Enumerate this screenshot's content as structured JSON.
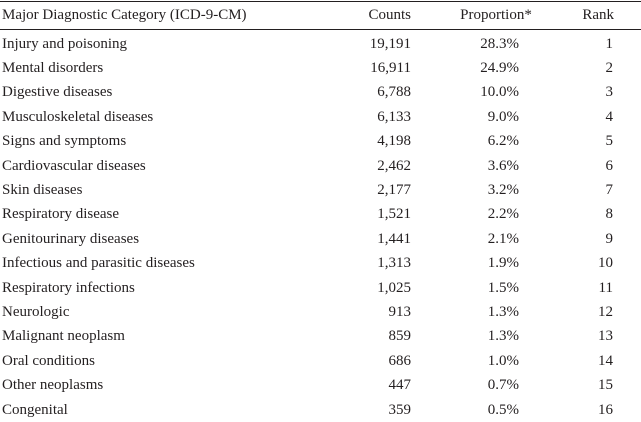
{
  "table": {
    "headers": {
      "category": "Major Diagnostic Category (ICD-9-CM)",
      "counts": "Counts",
      "proportion": "Proportion*",
      "rank": "Rank"
    },
    "rows": [
      {
        "category": "Injury and poisoning",
        "counts": "19,191",
        "proportion": "28.3%",
        "rank": "1"
      },
      {
        "category": "Mental disorders",
        "counts": "16,911",
        "proportion": "24.9%",
        "rank": "2"
      },
      {
        "category": "Digestive diseases",
        "counts": "6,788",
        "proportion": "10.0%",
        "rank": "3"
      },
      {
        "category": "Musculoskeletal diseases",
        "counts": "6,133",
        "proportion": "9.0%",
        "rank": "4"
      },
      {
        "category": "Signs and symptoms",
        "counts": "4,198",
        "proportion": "6.2%",
        "rank": "5"
      },
      {
        "category": "Cardiovascular diseases",
        "counts": "2,462",
        "proportion": "3.6%",
        "rank": "6"
      },
      {
        "category": "Skin diseases",
        "counts": "2,177",
        "proportion": "3.2%",
        "rank": "7"
      },
      {
        "category": "Respiratory disease",
        "counts": "1,521",
        "proportion": "2.2%",
        "rank": "8"
      },
      {
        "category": "Genitourinary diseases",
        "counts": "1,441",
        "proportion": "2.1%",
        "rank": "9"
      },
      {
        "category": "Infectious and parasitic diseases",
        "counts": "1,313",
        "proportion": "1.9%",
        "rank": "10"
      },
      {
        "category": "Respiratory infections",
        "counts": "1,025",
        "proportion": "1.5%",
        "rank": "11"
      },
      {
        "category": "Neurologic",
        "counts": "913",
        "proportion": "1.3%",
        "rank": "12"
      },
      {
        "category": "Malignant neoplasm",
        "counts": "859",
        "proportion": "1.3%",
        "rank": "13"
      },
      {
        "category": "Oral conditions",
        "counts": "686",
        "proportion": "1.0%",
        "rank": "14"
      },
      {
        "category": "Other neoplasms",
        "counts": "447",
        "proportion": "0.7%",
        "rank": "15"
      },
      {
        "category": "Congenital",
        "counts": "359",
        "proportion": "0.5%",
        "rank": "16"
      }
    ]
  }
}
